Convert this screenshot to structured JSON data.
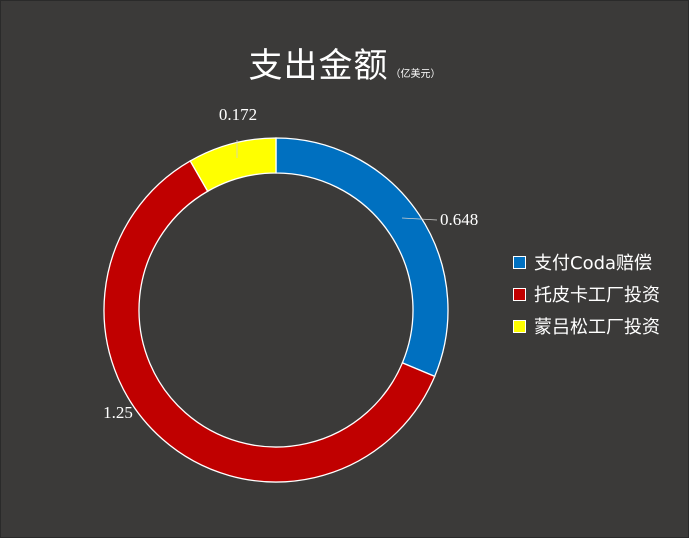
{
  "chart_data": {
    "type": "pie",
    "donut": true,
    "title": "支出金额",
    "unit_note": "（亿美元）",
    "series": [
      {
        "name": "支付Coda赔偿",
        "value": 0.648,
        "label": "0.648",
        "color": "#0070c0"
      },
      {
        "name": "托皮卡工厂投资",
        "value": 1.25,
        "label": "1.25",
        "color": "#c00000"
      },
      {
        "name": "蒙吕松工厂投资",
        "value": 0.172,
        "label": "0.172",
        "color": "#ffff00"
      }
    ],
    "legend_position": "right",
    "background": "#3b3a39"
  }
}
